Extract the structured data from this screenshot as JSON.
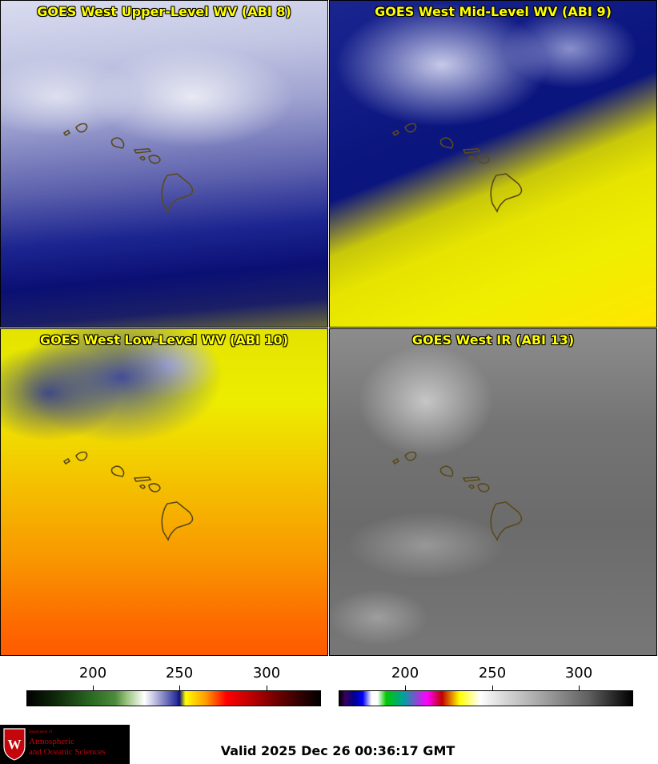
{
  "panels": [
    {
      "title": "GOES West Upper-Level WV (ABI 8)",
      "band": "ABI 8"
    },
    {
      "title": "GOES West Mid-Level WV (ABI 9)",
      "band": "ABI 9"
    },
    {
      "title": "GOES West Low-Level WV (ABI 10)",
      "band": "ABI 10"
    },
    {
      "title": "GOES West IR (ABI 13)",
      "band": "ABI 13"
    }
  ],
  "colorbars": {
    "left": {
      "ticks": [
        "200",
        "250",
        "300"
      ],
      "tick_values": [
        200,
        250,
        300
      ],
      "range": [
        163,
        333
      ],
      "name": "water-vapor-colorbar"
    },
    "right": {
      "ticks": [
        "200",
        "250",
        "300"
      ],
      "tick_values": [
        200,
        250,
        300
      ],
      "range": [
        163,
        333
      ],
      "name": "infrared-colorbar"
    }
  },
  "logo": {
    "dept_of": "Department of",
    "line1": "Atmospheric",
    "line2": "and Oceanic Sciences",
    "emblem": "W"
  },
  "valid_time": "Valid 2025 Dec 26 00:36:17 GMT",
  "colors": {
    "title_text": "#ffff00",
    "island_outline": "#5a4a1a",
    "logo_red": "#c5050c"
  }
}
